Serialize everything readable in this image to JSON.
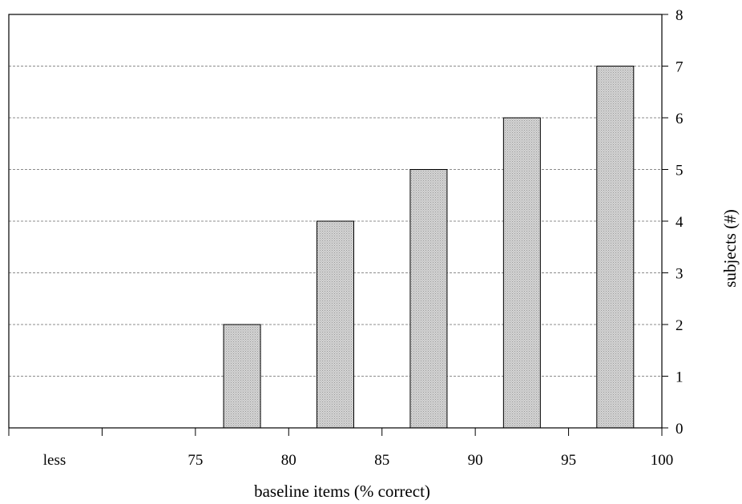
{
  "chart_data": {
    "type": "bar",
    "title": "",
    "xlabel": "baseline items (% correct)",
    "ylabel": "subjects (#)",
    "x_tick_labels": [
      "less",
      "",
      "75",
      "80",
      "85",
      "90",
      "95",
      "100"
    ],
    "categories": [
      "less",
      "<75",
      "75-80",
      "80-85",
      "85-90",
      "90-95",
      "95-100"
    ],
    "values": [
      0,
      0,
      2,
      4,
      5,
      6,
      7
    ],
    "ylim": [
      0,
      8
    ],
    "y_ticks": [
      0,
      1,
      2,
      3,
      4,
      5,
      6,
      7,
      8
    ],
    "y_axis_side": "right",
    "grid": true,
    "bar_color": "#c8c8c8"
  }
}
